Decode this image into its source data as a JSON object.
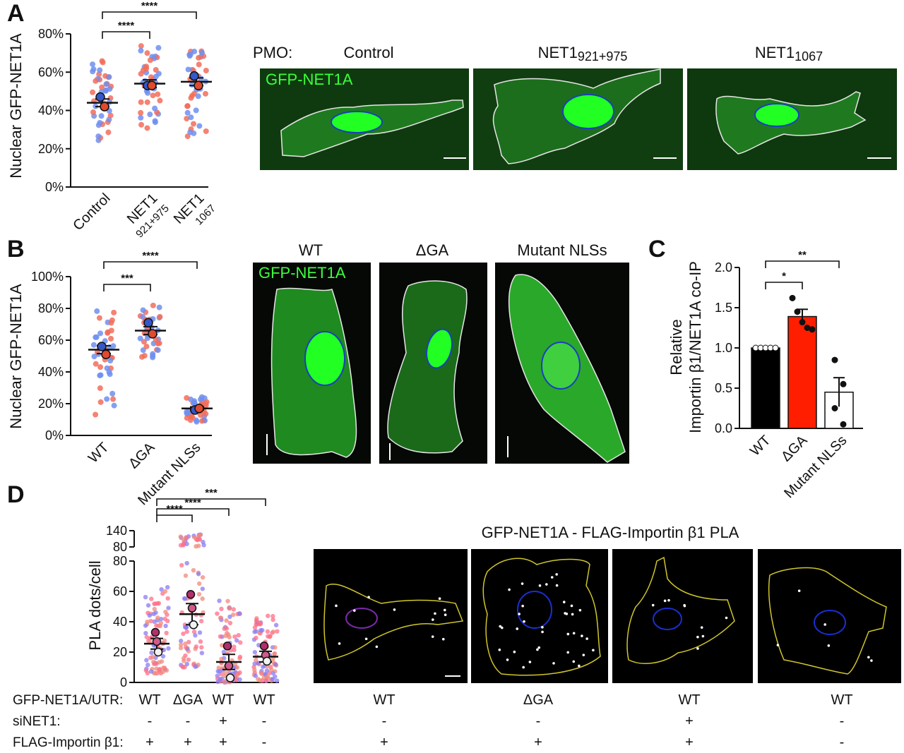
{
  "panels": {
    "A": "A",
    "B": "B",
    "C": "C",
    "D": "D"
  },
  "panel_a": {
    "ylabel": "Nuclear GFP-NET1A",
    "yticks": [
      "0%",
      "20%",
      "40%",
      "60%",
      "80%"
    ],
    "categories": [
      {
        "main": "Control",
        "sub": ""
      },
      {
        "main": "NET1",
        "sub": "921+975"
      },
      {
        "main": "NET1",
        "sub": "1067"
      }
    ],
    "pmo_label": "PMO:",
    "image_titles": [
      {
        "main": "Control",
        "sub": ""
      },
      {
        "main": "NET1",
        "sub": "921+975"
      },
      {
        "main": "NET1",
        "sub": "1067"
      }
    ],
    "gfp_label": "GFP-NET1A",
    "sig": [
      "****",
      "****"
    ]
  },
  "panel_b": {
    "ylabel": "Nuclear GFP-NET1A",
    "yticks": [
      "0%",
      "20%",
      "40%",
      "60%",
      "80%",
      "100%"
    ],
    "categories": [
      "WT",
      "ΔGA",
      "Mutant NLSs"
    ],
    "image_titles": [
      "WT",
      "ΔGA",
      "Mutant NLSs"
    ],
    "gfp_label": "GFP-NET1A",
    "sig": [
      "***",
      "****"
    ]
  },
  "panel_c": {
    "ylabel1": "Relative",
    "ylabel2": "Importin β1/NET1A co-IP",
    "yticks": [
      "0.0",
      "0.5",
      "1.0",
      "1.5",
      "2.0"
    ],
    "categories": [
      "WT",
      "ΔGA",
      "Mutant NLSs"
    ],
    "sig": [
      "*",
      "**"
    ]
  },
  "panel_d": {
    "ylabel": "PLA dots/cell",
    "yticks_low": [
      "0",
      "20",
      "40",
      "60",
      "80"
    ],
    "yticks_high": [
      "80",
      "140"
    ],
    "title": "GFP-NET1A - FLAG-Importin β1 PLA",
    "row_labels": [
      "GFP-NET1A/UTR:",
      "siNET1:",
      "FLAG-Importin β1:"
    ],
    "columns": [
      {
        "construct": "WT",
        "sinet1": "-",
        "flag": "+"
      },
      {
        "construct": "ΔGA",
        "sinet1": "-",
        "flag": "+"
      },
      {
        "construct": "WT",
        "sinet1": "+",
        "flag": "+"
      },
      {
        "construct": "WT",
        "sinet1": "-",
        "flag": "-"
      }
    ],
    "sig": [
      "****",
      "****",
      "***"
    ]
  },
  "chart_data": [
    {
      "panel": "A",
      "type": "scatter",
      "ylabel": "Nuclear GFP-NET1A",
      "ylim": [
        0,
        80
      ],
      "unit": "%",
      "categories": [
        "Control",
        "NET1 921+975",
        "NET1 1067"
      ],
      "means": [
        44,
        54,
        55
      ],
      "sem": [
        2,
        2,
        2
      ],
      "replicate_means": {
        "blue": [
          47,
          53,
          58
        ],
        "red": [
          42,
          53,
          53
        ]
      },
      "points_range": [
        [
          22,
          67
        ],
        [
          30,
          74
        ],
        [
          26,
          72
        ]
      ],
      "colors": {
        "blue": "#6f8ff0",
        "red": "#f26d5b"
      }
    },
    {
      "panel": "B",
      "type": "scatter",
      "ylabel": "Nuclear GFP-NET1A",
      "ylim": [
        0,
        100
      ],
      "unit": "%",
      "categories": [
        "WT",
        "ΔGA",
        "Mutant NLSs"
      ],
      "means": [
        54,
        66,
        17
      ],
      "sem": [
        2.5,
        2.5,
        1
      ],
      "replicate_means": {
        "blue": [
          56,
          71,
          16
        ],
        "red": [
          51,
          64,
          17
        ]
      },
      "points_range": [
        [
          12,
          81
        ],
        [
          46,
          82
        ],
        [
          8,
          25
        ]
      ]
    },
    {
      "panel": "C",
      "type": "bar",
      "ylabel": "Relative Importin β1/NET1A co-IP",
      "ylim": [
        0,
        2.0
      ],
      "categories": [
        "WT",
        "ΔGA",
        "Mutant NLSs"
      ],
      "values": [
        1.0,
        1.39,
        0.45
      ],
      "sem": [
        0,
        0.09,
        0.18
      ],
      "points": [
        [
          1,
          1,
          1,
          1,
          1
        ],
        [
          1.62,
          1.45,
          1.32,
          1.25,
          1.23
        ],
        [
          0.85,
          0.55,
          0.25,
          0.05
        ]
      ],
      "bar_colors": [
        "#000000",
        "#ff1e00",
        "#ffffff"
      ]
    },
    {
      "panel": "D",
      "type": "scatter",
      "ylabel": "PLA dots/cell",
      "ylim": [
        0,
        140
      ],
      "categories": [
        "WT",
        "ΔGA",
        "WT siNET1",
        "WT no FLAG"
      ],
      "means": [
        25.5,
        45,
        13.5,
        17
      ],
      "sem": [
        3.5,
        7,
        5,
        3.5
      ],
      "replicate_means": [
        [
          33,
          27,
          20
        ],
        [
          58,
          49,
          38
        ],
        [
          24,
          11,
          3
        ],
        [
          24,
          18,
          14
        ]
      ],
      "points_range": [
        [
          6,
          63
        ],
        [
          10,
          130
        ],
        [
          0,
          55
        ],
        [
          1,
          46
        ]
      ]
    }
  ]
}
